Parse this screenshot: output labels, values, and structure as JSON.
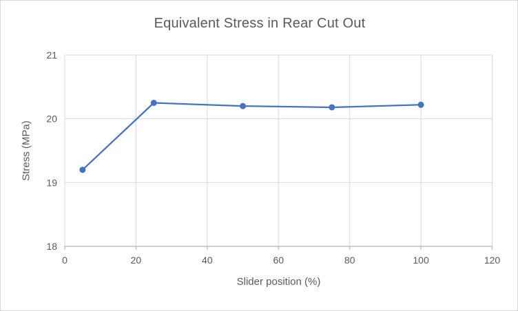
{
  "chart": {
    "title": "Equivalent Stress in Rear Cut Out",
    "x_axis_title": "Slider position (%)",
    "y_axis_title": "Stress (MPa)"
  },
  "chart_data": {
    "type": "line",
    "title": "Equivalent Stress in Rear Cut Out",
    "xlabel": "Slider position (%)",
    "ylabel": "Stress (MPa)",
    "x": [
      5,
      25,
      50,
      75,
      100
    ],
    "y": [
      19.2,
      20.25,
      20.2,
      20.18,
      20.22
    ],
    "xlim": [
      0,
      120
    ],
    "ylim": [
      18,
      21
    ],
    "xticks": [
      0,
      20,
      40,
      60,
      80,
      100,
      120
    ],
    "yticks": [
      18,
      19,
      20,
      21
    ],
    "grid": true,
    "legend": false,
    "marker": "circle",
    "colors": {
      "series": "#4472C4",
      "gridline": "#D9D9D9",
      "plot_border": "#D9D9D9",
      "axis_line": "#BFBFBF",
      "text": "#595959",
      "frame_border": "#D9D9D9",
      "background": "#FFFFFF"
    }
  }
}
